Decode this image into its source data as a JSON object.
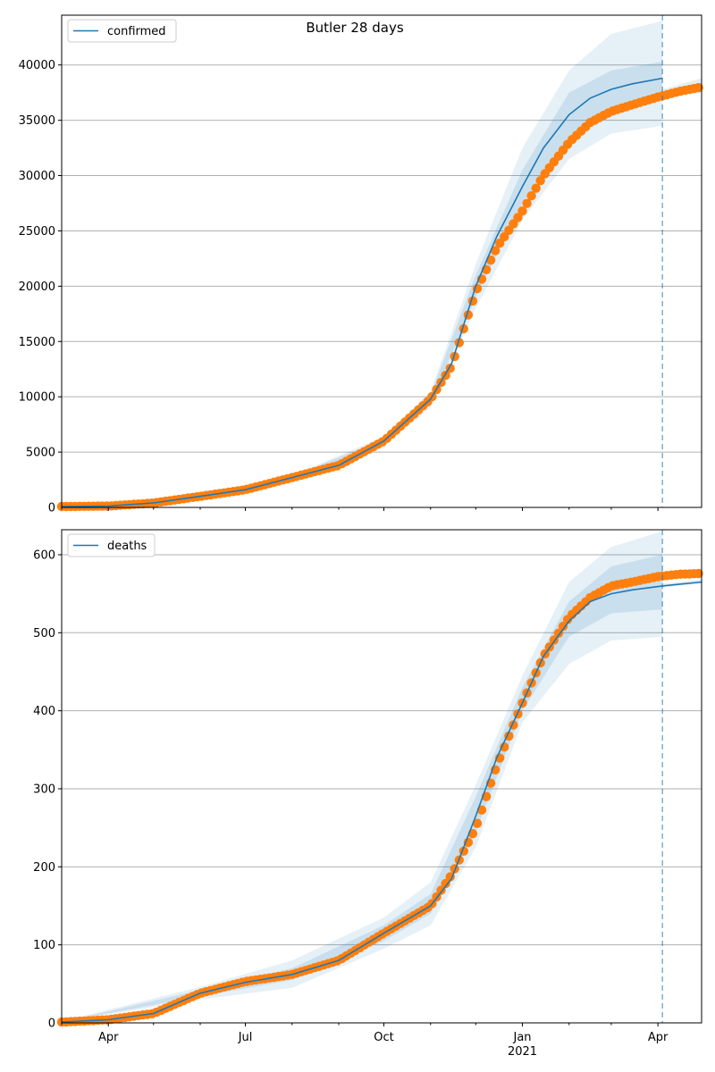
{
  "figure": {
    "title": "Butler 28 days"
  },
  "colors": {
    "model": "#1f77b4",
    "observed": "#ff7f0e",
    "band": "#1f77b4",
    "grid": "#b0b0b0"
  },
  "x_axis": {
    "range": [
      "2020-03-01",
      "2021-04-30"
    ],
    "ticks": [
      {
        "date": "2020-04-01",
        "label": "Apr"
      },
      {
        "date": "2020-07-01",
        "label": "Jul"
      },
      {
        "date": "2020-10-01",
        "label": "Oct"
      },
      {
        "date": "2021-01-01",
        "label": "Jan",
        "sublabel": "2021"
      },
      {
        "date": "2021-04-01",
        "label": "Apr"
      }
    ],
    "forecast_start": "2021-04-04"
  },
  "chart_data": [
    {
      "type": "line",
      "legend": "confirmed",
      "legend_position": "top-left",
      "grid": true,
      "ylim": [
        0,
        44500
      ],
      "yticks": [
        0,
        5000,
        10000,
        15000,
        20000,
        25000,
        30000,
        35000,
        40000
      ],
      "series": [
        {
          "name": "confirmed",
          "role": "model",
          "x": [
            "2020-03-01",
            "2020-04-01",
            "2020-05-01",
            "2020-06-01",
            "2020-07-01",
            "2020-08-01",
            "2020-09-01",
            "2020-10-01",
            "2020-11-01",
            "2020-11-15",
            "2020-12-01",
            "2020-12-15",
            "2021-01-01",
            "2021-01-15",
            "2021-02-01",
            "2021-02-15",
            "2021-03-01",
            "2021-03-15",
            "2021-04-04"
          ],
          "y": [
            80,
            120,
            400,
            1000,
            1600,
            2700,
            3800,
            6000,
            9800,
            13000,
            20000,
            24500,
            29000,
            32500,
            35500,
            37000,
            37800,
            38300,
            38800
          ]
        },
        {
          "name": "observed",
          "role": "observed",
          "x": [
            "2020-03-01",
            "2020-04-01",
            "2020-05-01",
            "2020-06-01",
            "2020-07-01",
            "2020-08-01",
            "2020-09-01",
            "2020-10-01",
            "2020-11-01",
            "2020-11-15",
            "2020-12-01",
            "2020-12-15",
            "2021-01-01",
            "2021-01-15",
            "2021-02-01",
            "2021-02-15",
            "2021-03-01",
            "2021-03-15",
            "2021-04-01",
            "2021-04-15",
            "2021-04-30"
          ],
          "y": [
            80,
            120,
            400,
            1000,
            1600,
            2700,
            3800,
            6000,
            9800,
            12800,
            19500,
            23500,
            26800,
            30000,
            33000,
            34800,
            35800,
            36400,
            37100,
            37600,
            38000
          ]
        }
      ],
      "bands": [
        {
          "x": [
            "2020-03-01",
            "2020-06-01",
            "2020-08-01",
            "2020-10-01",
            "2020-11-01",
            "2020-12-01",
            "2021-01-01",
            "2021-02-01",
            "2021-03-01",
            "2021-04-04"
          ],
          "lower": [
            80,
            900,
            2500,
            5600,
            9000,
            18000,
            26000,
            31500,
            33800,
            34500
          ],
          "upper": [
            90,
            1100,
            2900,
            6400,
            10500,
            22000,
            32500,
            39500,
            42800,
            44000
          ]
        },
        {
          "x": [
            "2020-03-01",
            "2020-06-01",
            "2020-08-01",
            "2020-10-01",
            "2020-11-01",
            "2020-12-01",
            "2021-01-01",
            "2021-02-01",
            "2021-03-01",
            "2021-04-04"
          ],
          "lower": [
            80,
            950,
            2600,
            5800,
            9400,
            19000,
            27500,
            33500,
            36000,
            37000
          ],
          "upper": [
            85,
            1050,
            2800,
            6200,
            10200,
            21000,
            30500,
            37500,
            39500,
            40300
          ]
        }
      ],
      "future_band": {
        "x": [
          "2021-04-04",
          "2021-04-30"
        ],
        "lower": [
          37100,
          37500
        ],
        "upper": [
          37800,
          38800
        ]
      }
    },
    {
      "type": "line",
      "legend": "deaths",
      "legend_position": "top-left",
      "grid": true,
      "ylim": [
        0,
        632
      ],
      "yticks": [
        0,
        100,
        200,
        300,
        400,
        500,
        600
      ],
      "series": [
        {
          "name": "deaths",
          "role": "model",
          "x": [
            "2020-03-01",
            "2020-04-01",
            "2020-05-01",
            "2020-06-01",
            "2020-07-01",
            "2020-08-01",
            "2020-09-01",
            "2020-10-01",
            "2020-11-01",
            "2020-11-15",
            "2020-12-01",
            "2020-12-15",
            "2021-01-01",
            "2021-01-15",
            "2021-02-01",
            "2021-02-15",
            "2021-03-01",
            "2021-03-15",
            "2021-04-04",
            "2021-04-30"
          ],
          "y": [
            1,
            4,
            12,
            38,
            52,
            62,
            80,
            115,
            150,
            185,
            265,
            340,
            410,
            470,
            515,
            540,
            550,
            555,
            560,
            565
          ]
        },
        {
          "name": "observed",
          "role": "observed",
          "x": [
            "2020-03-01",
            "2020-04-01",
            "2020-05-01",
            "2020-06-01",
            "2020-07-01",
            "2020-08-01",
            "2020-09-01",
            "2020-10-01",
            "2020-11-01",
            "2020-11-15",
            "2020-12-01",
            "2020-12-15",
            "2021-01-01",
            "2021-01-15",
            "2021-02-01",
            "2021-02-15",
            "2021-03-01",
            "2021-03-15",
            "2021-04-01",
            "2021-04-15",
            "2021-04-30"
          ],
          "y": [
            1,
            4,
            12,
            38,
            53,
            62,
            80,
            115,
            150,
            190,
            250,
            330,
            410,
            470,
            520,
            545,
            560,
            565,
            572,
            575,
            576
          ]
        }
      ],
      "bands": [
        {
          "x": [
            "2020-03-01",
            "2020-06-01",
            "2020-08-01",
            "2020-10-01",
            "2020-11-01",
            "2020-12-01",
            "2021-01-01",
            "2021-02-01",
            "2021-03-01",
            "2021-04-04"
          ],
          "lower": [
            1,
            30,
            45,
            95,
            125,
            225,
            385,
            460,
            490,
            495
          ],
          "upper": [
            2,
            46,
            80,
            135,
            180,
            305,
            445,
            565,
            610,
            630
          ]
        },
        {
          "x": [
            "2020-03-01",
            "2020-06-01",
            "2020-08-01",
            "2020-10-01",
            "2020-11-01",
            "2020-12-01",
            "2021-01-01",
            "2021-02-01",
            "2021-03-01",
            "2021-04-04"
          ],
          "lower": [
            1,
            34,
            55,
            105,
            140,
            245,
            400,
            495,
            525,
            530
          ],
          "upper": [
            1,
            42,
            70,
            125,
            165,
            290,
            430,
            540,
            585,
            600
          ]
        }
      ],
      "future_band": {
        "x": [
          "2021-04-04",
          "2021-04-30"
        ],
        "lower": [
          558,
          563
        ],
        "upper": [
          563,
          568
        ]
      }
    }
  ]
}
